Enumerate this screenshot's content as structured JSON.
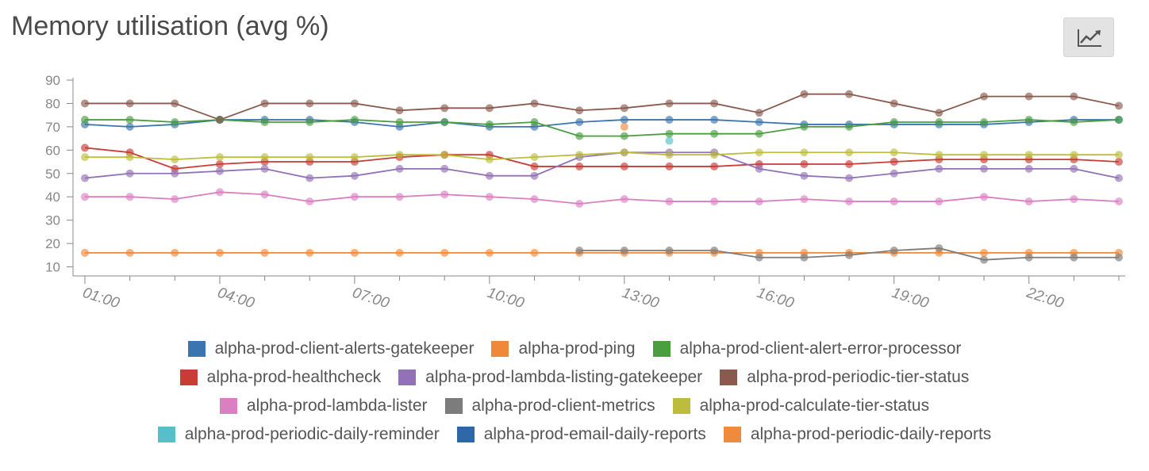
{
  "title": "Memory utilisation (avg %)",
  "toolbar": {
    "chart_icon": "line-chart-icon"
  },
  "chart_data": {
    "type": "line",
    "x": [
      "01:00",
      "02:00",
      "03:00",
      "04:00",
      "05:00",
      "06:00",
      "07:00",
      "08:00",
      "09:00",
      "10:00",
      "11:00",
      "12:00",
      "13:00",
      "14:00",
      "15:00",
      "16:00",
      "17:00",
      "18:00",
      "19:00",
      "20:00",
      "21:00",
      "22:00",
      "23:00",
      "00:00"
    ],
    "x_tick_labels": [
      "01:00",
      "04:00",
      "07:00",
      "10:00",
      "13:00",
      "16:00",
      "19:00",
      "22:00"
    ],
    "y_ticks": [
      10,
      20,
      30,
      40,
      50,
      60,
      70,
      80,
      90
    ],
    "ylim": [
      7,
      91
    ],
    "grid": false,
    "legend_placement": "bottom",
    "series": [
      {
        "name": "alpha-prod-client-alerts-gatekeeper",
        "color": "#3a75b0",
        "values": [
          71,
          70,
          71,
          73,
          73,
          73,
          72,
          70,
          72,
          70,
          70,
          72,
          73,
          73,
          73,
          72,
          71,
          71,
          71,
          71,
          71,
          72,
          73,
          73
        ]
      },
      {
        "name": "alpha-prod-ping",
        "color": "#f0883a",
        "values": [
          16,
          16,
          16,
          16,
          16,
          16,
          16,
          16,
          16,
          16,
          16,
          16,
          16,
          16,
          16,
          16,
          16,
          16,
          16,
          16,
          16,
          16,
          16,
          16
        ]
      },
      {
        "name": "alpha-prod-client-alert-error-processor",
        "color": "#4a9e3f",
        "values": [
          73,
          73,
          72,
          73,
          72,
          72,
          73,
          72,
          72,
          71,
          72,
          66,
          66,
          67,
          67,
          67,
          70,
          70,
          72,
          72,
          72,
          73,
          72,
          73
        ]
      },
      {
        "name": "alpha-prod-healthcheck",
        "color": "#c93b35",
        "values": [
          61,
          59,
          52,
          54,
          55,
          55,
          55,
          57,
          58,
          58,
          53,
          53,
          53,
          53,
          53,
          54,
          54,
          54,
          55,
          56,
          56,
          56,
          56,
          55
        ]
      },
      {
        "name": "alpha-prod-lambda-listing-gatekeeper",
        "color": "#9271b6",
        "values": [
          48,
          50,
          50,
          51,
          52,
          48,
          49,
          52,
          52,
          49,
          49,
          57,
          59,
          59,
          59,
          52,
          49,
          48,
          50,
          52,
          52,
          52,
          52,
          48
        ]
      },
      {
        "name": "alpha-prod-periodic-tier-status",
        "color": "#8b5a4f",
        "values": [
          80,
          80,
          80,
          73,
          80,
          80,
          80,
          77,
          78,
          78,
          80,
          77,
          78,
          80,
          80,
          76,
          84,
          84,
          80,
          76,
          83,
          83,
          83,
          79
        ]
      },
      {
        "name": "alpha-prod-lambda-lister",
        "color": "#da7fc1",
        "values": [
          40,
          40,
          39,
          42,
          41,
          38,
          40,
          40,
          41,
          40,
          39,
          37,
          39,
          38,
          38,
          38,
          39,
          38,
          38,
          38,
          40,
          38,
          39,
          38
        ]
      },
      {
        "name": "alpha-prod-client-metrics",
        "color": "#7c7c7c",
        "values": [
          null,
          null,
          null,
          null,
          null,
          null,
          null,
          null,
          null,
          null,
          null,
          17,
          17,
          17,
          17,
          14,
          14,
          15,
          17,
          18,
          13,
          14,
          14,
          14
        ]
      },
      {
        "name": "alpha-prod-calculate-tier-status",
        "color": "#bcbd3c",
        "values": [
          57,
          57,
          56,
          57,
          57,
          57,
          57,
          58,
          58,
          56,
          57,
          58,
          59,
          58,
          58,
          59,
          59,
          59,
          59,
          58,
          58,
          58,
          58,
          58
        ]
      },
      {
        "name": "alpha-prod-periodic-daily-reminder",
        "color": "#56bfca",
        "values": [
          null,
          null,
          null,
          null,
          null,
          null,
          null,
          null,
          null,
          null,
          null,
          null,
          null,
          64,
          null,
          null,
          null,
          null,
          null,
          null,
          null,
          null,
          null,
          null
        ]
      },
      {
        "name": "alpha-prod-email-daily-reports",
        "color": "#2f68a8",
        "values": [
          null,
          null,
          null,
          null,
          null,
          null,
          null,
          null,
          null,
          null,
          null,
          null,
          null,
          null,
          null,
          null,
          null,
          null,
          null,
          null,
          null,
          null,
          null,
          null
        ]
      },
      {
        "name": "alpha-prod-periodic-daily-reports",
        "color": "#f08a3c",
        "values": [
          null,
          null,
          null,
          null,
          null,
          null,
          null,
          null,
          null,
          null,
          null,
          null,
          70,
          null,
          null,
          null,
          null,
          null,
          null,
          null,
          null,
          null,
          null,
          null
        ]
      }
    ]
  },
  "legend_rows": [
    [
      0,
      1,
      2
    ],
    [
      3,
      4,
      5
    ],
    [
      6,
      7,
      8
    ],
    [
      9,
      10,
      11
    ]
  ]
}
